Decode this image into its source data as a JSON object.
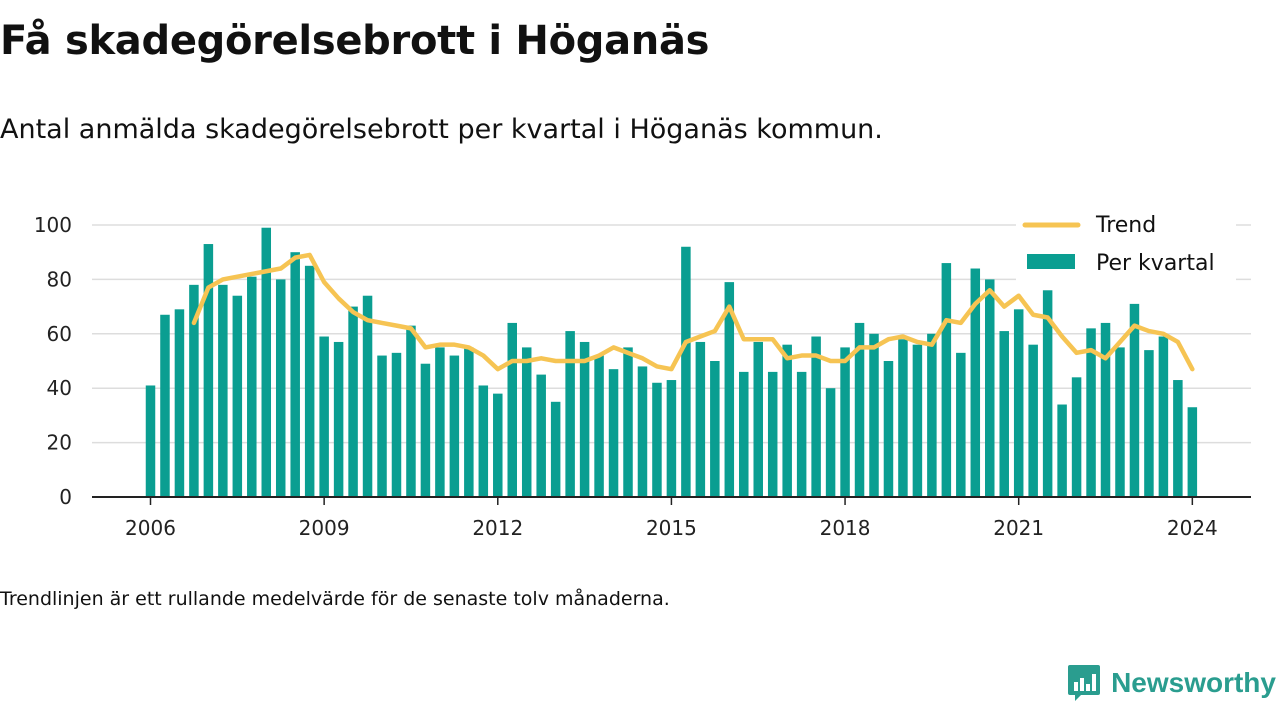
{
  "header": {
    "title": "Få skadegörelsebrott i Höganäs",
    "subtitle": "Antal anmälda skadegörelsebrott per kvartal i Höganäs kommun."
  },
  "footnote": "Trendlinjen är ett rullande medelvärde för de senaste tolv månaderna.",
  "brand": {
    "name": "Newsworthy",
    "icon": "newsworthy-logo-icon"
  },
  "colors": {
    "bars": "#0a9e91",
    "trend": "#f6c453",
    "grid": "#dddddd",
    "axis": "#222222",
    "brand": "#2a9d8f"
  },
  "chart_data": {
    "type": "bar",
    "x_tick_labels": [
      "2006",
      "2009",
      "2012",
      "2015",
      "2018",
      "2021",
      "2024"
    ],
    "y_ticks": [
      0,
      20,
      40,
      60,
      80,
      100
    ],
    "ylim": [
      0,
      100
    ],
    "grid": true,
    "legend_position": "top-right",
    "series": [
      {
        "name": "Per kvartal",
        "kind": "bar",
        "values": [
          41,
          67,
          69,
          78,
          93,
          78,
          74,
          81,
          99,
          80,
          90,
          85,
          59,
          57,
          70,
          74,
          52,
          53,
          63,
          49,
          55,
          52,
          55,
          41,
          38,
          64,
          55,
          45,
          35,
          61,
          57,
          52,
          47,
          55,
          48,
          42,
          43,
          92,
          57,
          50,
          79,
          46,
          57,
          46,
          56,
          46,
          59,
          40,
          55,
          64,
          60,
          50,
          58,
          56,
          60,
          86,
          53,
          84,
          80,
          61,
          69,
          56,
          76,
          34,
          44,
          62,
          64,
          55,
          71,
          54,
          59,
          43,
          33
        ]
      },
      {
        "name": "Trend",
        "kind": "line",
        "values": [
          null,
          null,
          null,
          64,
          77,
          80,
          81,
          82,
          83,
          84,
          88,
          89,
          79,
          73,
          68,
          65,
          64,
          63,
          62,
          55,
          56,
          56,
          55,
          52,
          47,
          50,
          50,
          51,
          50,
          50,
          50,
          52,
          55,
          53,
          51,
          48,
          47,
          57,
          59,
          61,
          70,
          58,
          58,
          58,
          51,
          52,
          52,
          50,
          50,
          55,
          55,
          58,
          59,
          57,
          56,
          65,
          64,
          71,
          76,
          70,
          74,
          67,
          66,
          59,
          53,
          54,
          51,
          57,
          63,
          61,
          60,
          57,
          47
        ]
      }
    ]
  }
}
